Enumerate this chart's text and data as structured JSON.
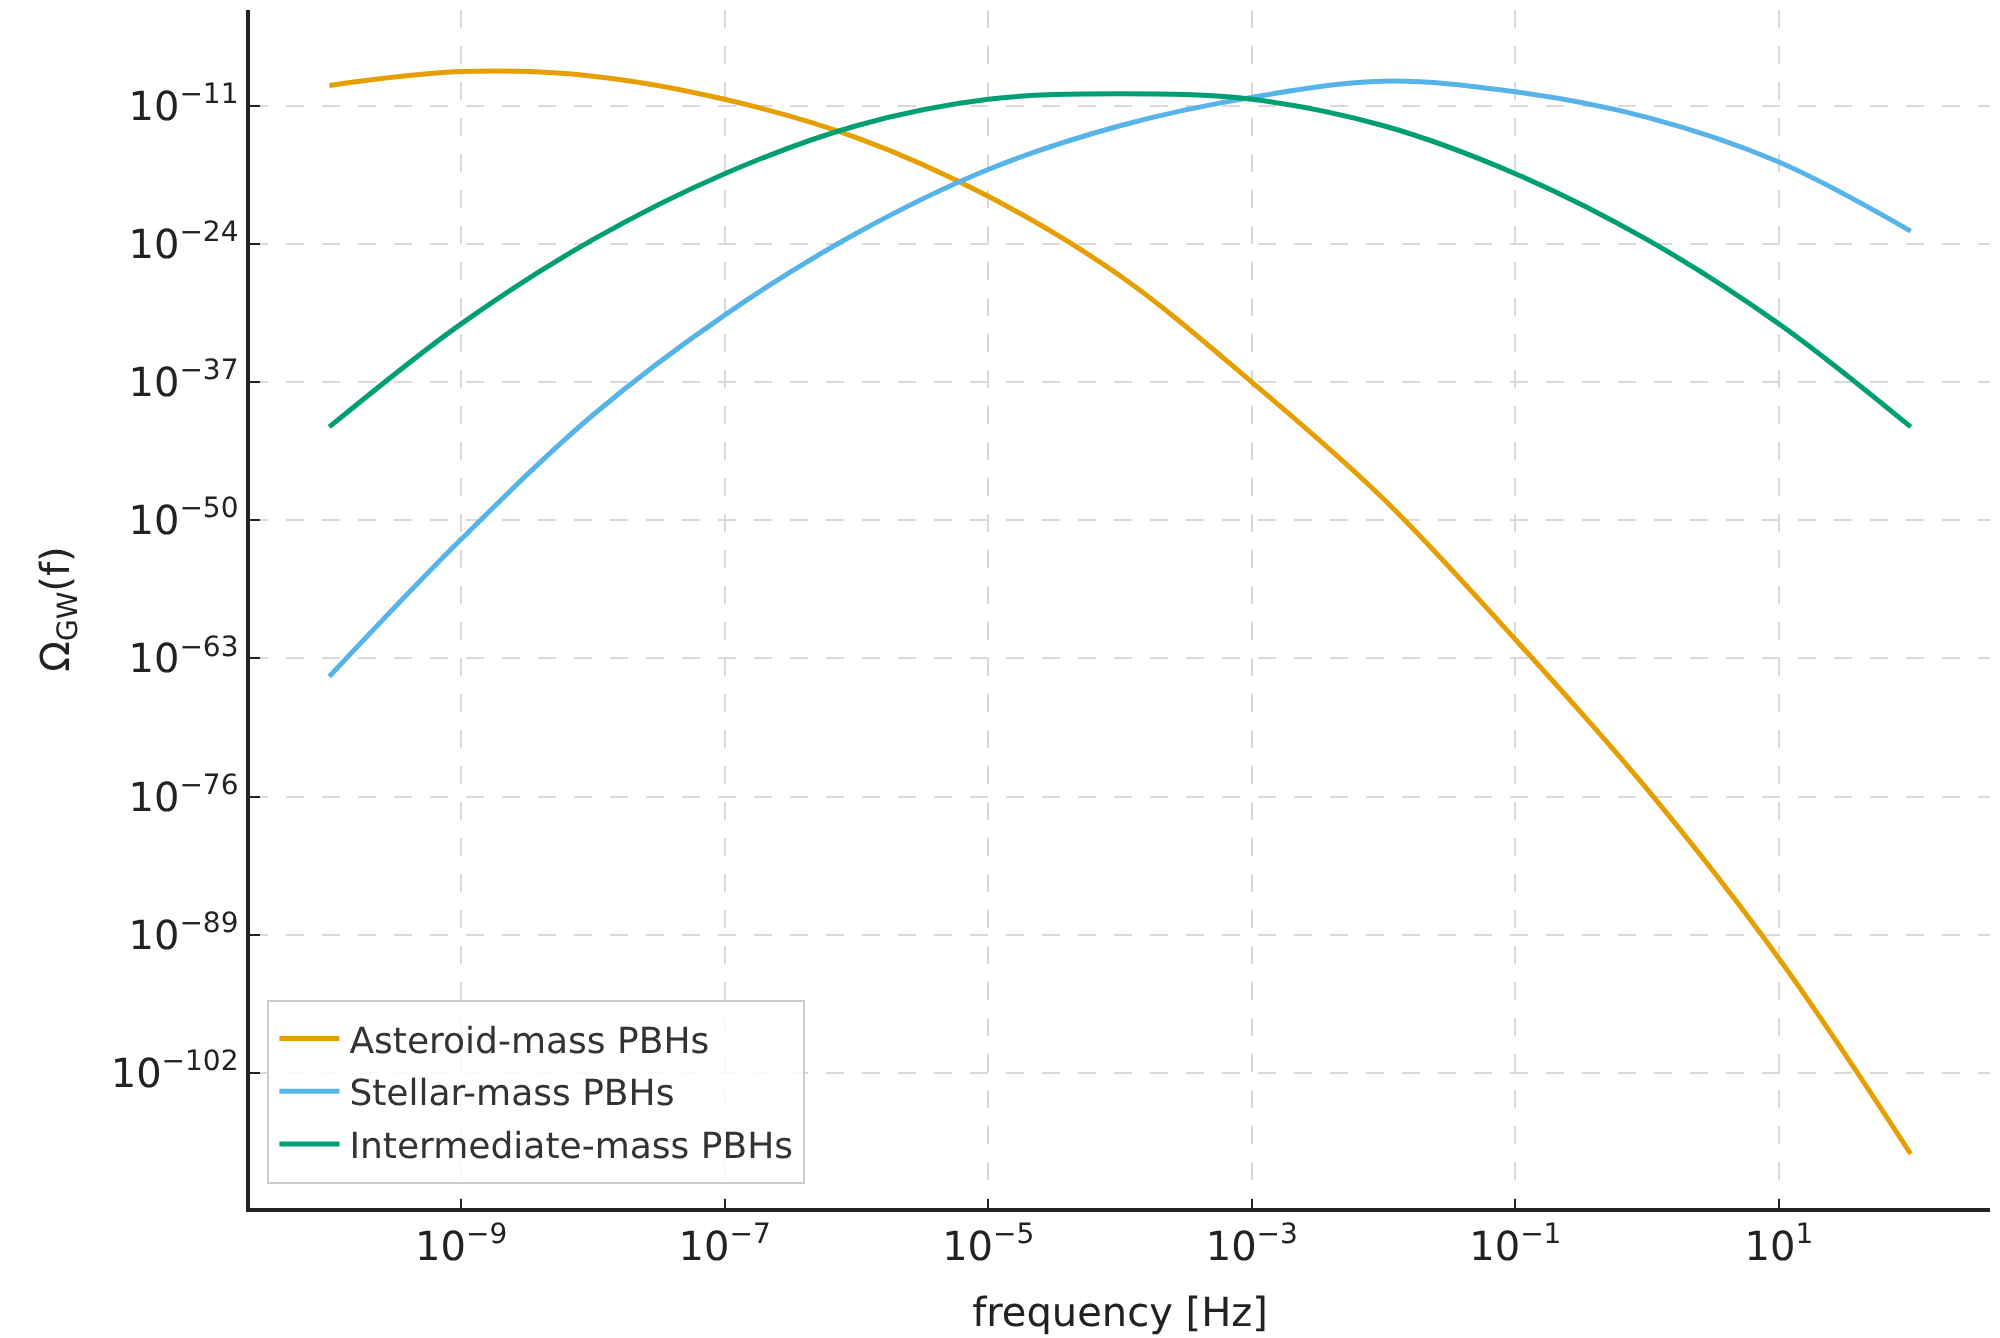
{
  "chart_data": {
    "type": "line",
    "xlabel": "frequency [Hz]",
    "ylabel": "Ω$_{GW}$(f)",
    "log": "xy",
    "grid": true,
    "legend": "bottom left",
    "marker": "none",
    "line_style": "solid",
    "x": [
      1e-10,
      1e-09,
      1e-08,
      1e-07,
      1e-06,
      1e-05,
      0.0001,
      0.001,
      0.01,
      0.1,
      1,
      10,
      100
    ],
    "series": [
      {
        "name": "Asteroid-mass PBHs",
        "color": "#e69f00",
        "values": [
          8e-10,
          1.6e-08,
          6e-09,
          4e-11,
          1e-14,
          3e-20,
          1e-27,
          1e-37,
          1e-48,
          6e-62,
          5e-76,
          6e-92,
          2.5e-110
        ]
      },
      {
        "name": "Stellar-mass PBHs",
        "color": "#56b4e9",
        "values": [
          2e-65,
          1.6e-52,
          8e-41,
          2e-31,
          1e-23,
          1e-17,
          1.3e-13,
          6e-11,
          2e-09,
          2e-10,
          8e-13,
          5e-17,
          1.6e-23
        ]
      },
      {
        "name": "Intermediate-mass PBHs",
        "color": "#009e73",
        "values": [
          6e-42,
          3e-32,
          2.5e-24,
          4e-18,
          1.3e-13,
          4e-11,
          1.3e-10,
          4e-11,
          1.3e-13,
          4e-18,
          2.5e-24,
          3e-32,
          6e-42
        ]
      }
    ],
    "xlim": [
      2.5e-11,
      400
    ],
    "ylim": [
      2e-115,
      0.01
    ],
    "xticks": [
      {
        "value": 1e-09,
        "label": "10$^{−9}$"
      },
      {
        "value": 1e-07,
        "label": "10$^{−7}$"
      },
      {
        "value": 1e-05,
        "label": "10$^{−5}$"
      },
      {
        "value": 0.001,
        "label": "10$^{−3}$"
      },
      {
        "value": 0.1,
        "label": "10$^{−1}$"
      },
      {
        "value": 10,
        "label": "10$^{1}$"
      }
    ],
    "yticks": [
      {
        "value": 1e-11,
        "label": "10$^{−11}$"
      },
      {
        "value": 1e-24,
        "label": "10$^{−24}$"
      },
      {
        "value": 1e-37,
        "label": "10$^{−37}$"
      },
      {
        "value": 1e-50,
        "label": "10$^{−50}$"
      },
      {
        "value": 1e-63,
        "label": "10$^{−63}$"
      },
      {
        "value": 1e-76,
        "label": "10$^{−76}$"
      },
      {
        "value": 1e-89,
        "label": "10$^{−89}$"
      },
      {
        "value": 1e-102,
        "label": "10$^{−102}$"
      }
    ]
  }
}
